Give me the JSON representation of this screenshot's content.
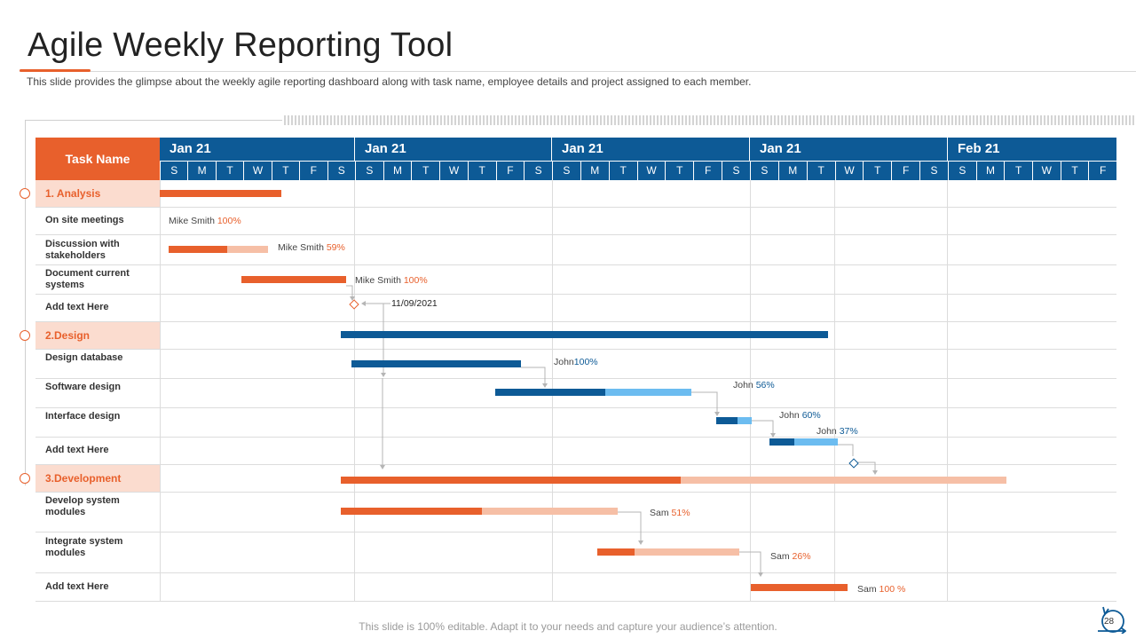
{
  "header": {
    "title": "Agile Weekly Reporting Tool",
    "subtitle": "This slide provides  the glimpse about the weekly agile reporting dashboard along with task name, employee details and project assigned to each member."
  },
  "table": {
    "task_header": "Task Name",
    "months": [
      "Jan 21",
      "Jan 21",
      "Jan 21",
      "Jan 21",
      "Feb  21"
    ],
    "days": [
      "S",
      "M",
      "T",
      "W",
      "T",
      "F",
      "S"
    ],
    "last_week_days": [
      "S",
      "M",
      "T",
      "W",
      "T",
      "F"
    ]
  },
  "phases": [
    {
      "label": "1. Analysis"
    },
    {
      "label": "2.Design"
    },
    {
      "label": "3.Development"
    }
  ],
  "tasks": [
    {
      "label": "On site meetings"
    },
    {
      "label": "Discussion with stakeholders"
    },
    {
      "label": "Document current systems"
    },
    {
      "label": "Add text Here"
    },
    {
      "label": "Design database"
    },
    {
      "label": "Software design"
    },
    {
      "label": "Interface design"
    },
    {
      "label": "Add text Here"
    },
    {
      "label": "Develop system modules"
    },
    {
      "label": "Integrate system modules"
    },
    {
      "label": "Add text Here"
    }
  ],
  "annotations": [
    {
      "name": "Mike Smith ",
      "pct": "100%"
    },
    {
      "name": "Mike Smith ",
      "pct": "59%"
    },
    {
      "name": "Mike Smith ",
      "pct": "100%"
    },
    {
      "name": "11/09/2021",
      "pct": ""
    },
    {
      "name": "John",
      "pct": "100%"
    },
    {
      "name": "John ",
      "pct": "56%"
    },
    {
      "name": "John ",
      "pct": "60%"
    },
    {
      "name": "John ",
      "pct": "37%"
    },
    {
      "name": "Sam ",
      "pct": "51%"
    },
    {
      "name": "Sam ",
      "pct": "26%"
    },
    {
      "name": "Sam ",
      "pct": "100 %"
    }
  ],
  "progress": {
    "discussion_with_stakeholders": 0.59,
    "software_design": 0.56,
    "interface_design": 0.6,
    "interface_design_2": 0.37,
    "development_phase": 0.51,
    "develop_system_modules": 0.51,
    "integrate_system_modules": 0.26
  },
  "colors": {
    "orange": "#e8602c",
    "orange_light": "#f6bfa6",
    "blue": "#0d5a96",
    "blue_light": "#6cbcf0",
    "phase_bg": "#fbdccf"
  },
  "footer": {
    "note": "This slide is 100% editable. Adapt it to your needs and capture your audience’s attention.",
    "page": "28"
  }
}
